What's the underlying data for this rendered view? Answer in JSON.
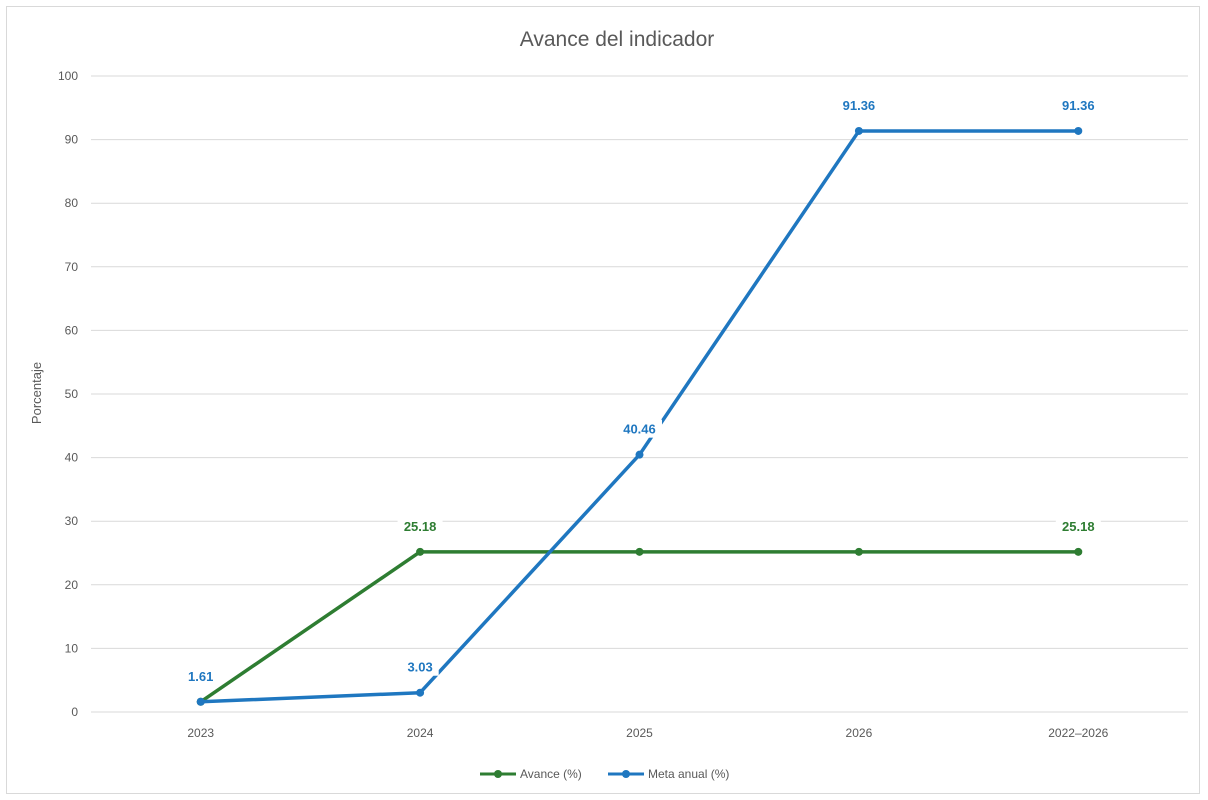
{
  "chart_data": {
    "type": "line",
    "title": "Avance del indicador",
    "xlabel": "",
    "ylabel": "Porcentaje",
    "categories": [
      "2023",
      "2024",
      "2025",
      "2026",
      "2022–2026"
    ],
    "ylim": [
      0,
      100
    ],
    "yticks": [
      0,
      10,
      20,
      30,
      40,
      50,
      60,
      70,
      80,
      90,
      100
    ],
    "grid": true,
    "legend_position": "bottom",
    "series": [
      {
        "name": "Avance (%)",
        "color": "#2e7d32",
        "values": [
          1.61,
          25.18,
          25.18,
          25.18,
          25.18
        ],
        "labels": [
          "",
          "25.18",
          "",
          "",
          "25.18"
        ]
      },
      {
        "name": "Meta anual (%)",
        "color": "#1f77c0",
        "values": [
          1.61,
          3.03,
          40.46,
          91.36,
          91.36
        ],
        "labels": [
          "1.61",
          "3.03",
          "40.46",
          "91.36",
          "91.36"
        ]
      }
    ]
  }
}
